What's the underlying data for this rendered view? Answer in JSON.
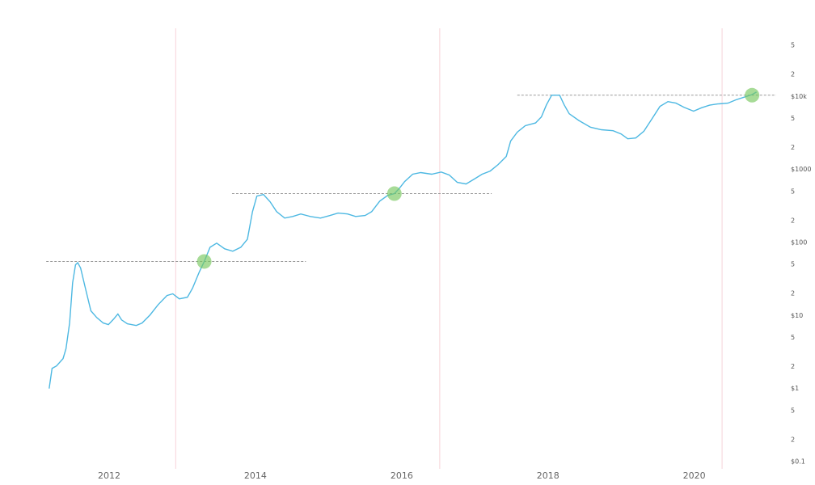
{
  "chart_data": {
    "type": "line",
    "color": "#4db8e2",
    "log_scale_y": true,
    "grid": false,
    "x": [
      2011.18,
      2011.22,
      2011.28,
      2011.37,
      2011.41,
      2011.46,
      2011.5,
      2011.54,
      2011.57,
      2011.61,
      2011.67,
      2011.75,
      2011.83,
      2011.92,
      2011.99,
      2012.06,
      2012.12,
      2012.17,
      2012.25,
      2012.37,
      2012.45,
      2012.56,
      2012.67,
      2012.79,
      2012.87,
      2012.96,
      2013.07,
      2013.14,
      2013.23,
      2013.3,
      2013.38,
      2013.47,
      2013.58,
      2013.69,
      2013.8,
      2013.89,
      2013.96,
      2014.02,
      2014.11,
      2014.2,
      2014.29,
      2014.4,
      2014.51,
      2014.62,
      2014.75,
      2014.89,
      2015.02,
      2015.13,
      2015.26,
      2015.37,
      2015.5,
      2015.59,
      2015.7,
      2015.81,
      2015.9,
      2015.97,
      2016.04,
      2016.15,
      2016.26,
      2016.41,
      2016.54,
      2016.65,
      2016.76,
      2016.88,
      2016.99,
      2017.1,
      2017.21,
      2017.32,
      2017.43,
      2017.49,
      2017.58,
      2017.69,
      2017.83,
      2017.91,
      2017.98,
      2018.05,
      2018.16,
      2018.22,
      2018.29,
      2018.42,
      2018.58,
      2018.73,
      2018.89,
      2019.0,
      2019.09,
      2019.2,
      2019.31,
      2019.42,
      2019.53,
      2019.64,
      2019.75,
      2019.86,
      2019.99,
      2020.1,
      2020.21,
      2020.32,
      2020.46,
      2020.57,
      2020.7,
      2020.79,
      2020.85
    ],
    "values": [
      1,
      1.89,
      2.04,
      2.57,
      3.5,
      7.9,
      28,
      49.5,
      53,
      44.7,
      25,
      11.6,
      9.4,
      7.9,
      7.5,
      8.9,
      10.5,
      8.7,
      7.7,
      7.3,
      7.9,
      10.2,
      14.1,
      18.8,
      19.8,
      16.9,
      17.8,
      23.6,
      39,
      55,
      86,
      98,
      82,
      76,
      86,
      111,
      265,
      432,
      455,
      362,
      265,
      216,
      227,
      246,
      227,
      216,
      234,
      253,
      246,
      227,
      234,
      265,
      369,
      442,
      467,
      555,
      684,
      862,
      906,
      862,
      923,
      840,
      667,
      633,
      737,
      862,
      953,
      1170,
      1510,
      2460,
      3240,
      3980,
      4340,
      5250,
      7700,
      10400,
      10400,
      7700,
      5800,
      4700,
      3800,
      3500,
      3400,
      3070,
      2630,
      2700,
      3340,
      4920,
      7300,
      8500,
      8100,
      7100,
      6300,
      7000,
      7600,
      7900,
      8100,
      9000,
      9900,
      10600,
      11500
    ],
    "xlim": [
      2010.95,
      2021.12
    ],
    "xticks": [
      2012,
      2014,
      2016,
      2018,
      2020
    ],
    "ylim": [
      0.1,
      100000
    ],
    "yticks": [
      {
        "value": 0.1,
        "label": "$0.1"
      },
      {
        "value": 0.2,
        "label": "2"
      },
      {
        "value": 0.5,
        "label": "5"
      },
      {
        "value": 1,
        "label": "$1"
      },
      2,
      5,
      {
        "value": 10,
        "label": "$10"
      },
      {
        "value": 20,
        "label": "2"
      },
      {
        "value": 50,
        "label": "5"
      },
      {
        "value": 100,
        "label": "$100"
      },
      {
        "value": 200,
        "label": "2"
      },
      {
        "value": 500,
        "label": "5"
      },
      {
        "value": 1000,
        "label": "$1000"
      },
      {
        "value": 2000,
        "label": "2"
      },
      {
        "value": 5000,
        "label": "5"
      },
      {
        "value": 10000,
        "label": "$10k"
      },
      {
        "value": 20000,
        "label": "2"
      },
      {
        "value": 50000,
        "label": "5"
      }
    ],
    "vertical_lines": [
      2012.91,
      2016.52,
      2020.38
    ],
    "levels": [
      {
        "value": 55,
        "x": [
          2011.14,
          2014.69
        ]
      },
      {
        "value": 467,
        "x": [
          2013.68,
          2017.23
        ]
      },
      {
        "value": 10400,
        "x": [
          2017.58,
          2021.12
        ]
      }
    ],
    "highlights": [
      {
        "x": 2013.3,
        "value": 55
      },
      {
        "x": 2015.9,
        "value": 467
      },
      {
        "x": 2020.79,
        "value": 10400
      }
    ]
  }
}
